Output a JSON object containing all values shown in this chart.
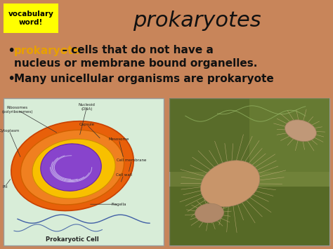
{
  "background_color": "#c8855a",
  "title": "prokaryotes",
  "title_fontsize": 22,
  "title_color": "#111111",
  "vocab_box_color": "#ffff00",
  "vocab_box_text": "vocabulary\nword!",
  "vocab_text_color": "#000000",
  "vocab_fontsize": 7.5,
  "bullet1_colored": "prokaryote",
  "bullet1_colored_color": "#e8a000",
  "bullet1_rest": " – cells that do not have a",
  "bullet1_line2": "nucleus or membrane bound organelles.",
  "bullet2": "Many unicellular organisms are prokaryote",
  "bullet_fontsize": 11,
  "bullet_color": "#111111",
  "left_img_bg": "#d8edd8",
  "left_img_border": "#aaaaaa",
  "right_img_bg": "#7a8a40"
}
